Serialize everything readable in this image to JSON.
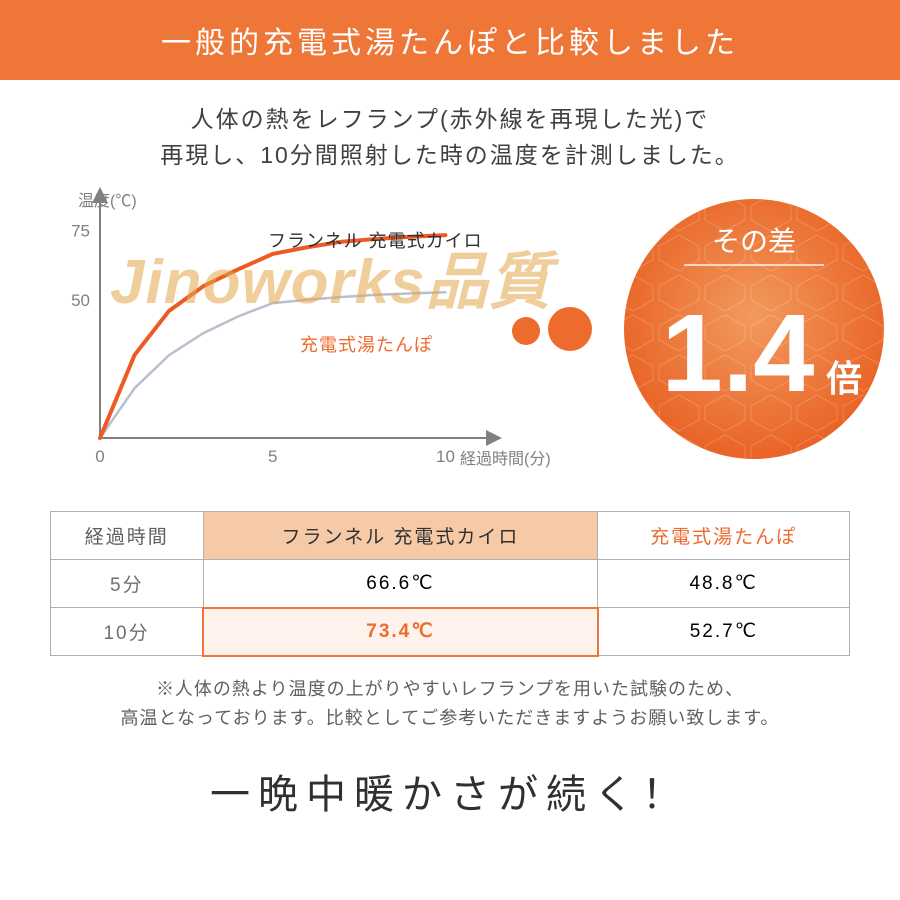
{
  "colors": {
    "header_bg": "#ee7738",
    "accent": "#ed6b2c",
    "series_a": "#ed5a24",
    "series_b": "#b7c0cc",
    "axis": "#808080",
    "grid_border": "#b0b0b0",
    "badge_gradient_inner": "#f29a5e",
    "badge_gradient_outer": "#e85e20",
    "th_highlight_bg": "#f6c9a7",
    "highlight_border": "#eb7640",
    "highlight_bg": "#fdf2ec",
    "watermark": "#e4a74a"
  },
  "header": {
    "title": "一般的充電式湯たんぽと比較しました"
  },
  "description": {
    "line1": "人体の熱をレフランプ(赤外線を再現した光)で",
    "line2": "再現し、10分間照射した時の温度を計測しました。"
  },
  "watermark": "Jinoworks品質",
  "chart": {
    "type": "line",
    "y_label": "温度(℃)",
    "x_label": "経過時間(分)",
    "xlim": [
      0,
      11
    ],
    "ylim": [
      0,
      85
    ],
    "x_ticks": [
      0,
      5,
      10
    ],
    "y_ticks": [
      50,
      75
    ],
    "axis_color": "#808080",
    "axis_stroke_width": 2,
    "line_width_a": 4,
    "line_width_b": 2.5,
    "series_a": {
      "label": "フランネル 充電式カイロ",
      "color": "#ed5a24",
      "points_x": [
        0,
        1,
        2,
        3,
        4,
        5,
        6,
        7,
        8,
        9,
        10
      ],
      "points_y": [
        0,
        30,
        46,
        55,
        61,
        66.6,
        69,
        71,
        72,
        72.8,
        73.4
      ]
    },
    "series_b": {
      "label": "充電式湯たんぽ",
      "color": "#b7c0cc",
      "points_x": [
        0,
        1,
        2,
        3,
        4,
        5,
        6,
        7,
        8,
        9,
        10
      ],
      "points_y": [
        0,
        18,
        30,
        38,
        44,
        48.8,
        50,
        51,
        51.8,
        52.3,
        52.7
      ]
    }
  },
  "badge": {
    "top_text": "その差",
    "number": "1.4",
    "unit": "倍",
    "top_fontsize": 28,
    "number_fontsize": 110,
    "unit_fontsize": 36,
    "text_color": "#ffffff",
    "diameter": 260,
    "connector_dot_a": {
      "d": 28,
      "color": "#ed6b2c"
    },
    "connector_dot_b": {
      "d": 44,
      "color": "#ed6b2c"
    }
  },
  "table": {
    "columns": [
      "経過時間",
      "フランネル 充電式カイロ",
      "充電式湯たんぽ"
    ],
    "col_header_colors": [
      "#606060",
      "#303030",
      "#ed6b2c"
    ],
    "col_header_bg": [
      "#ffffff",
      "#f6c9a7",
      "#ffffff"
    ],
    "rows": [
      {
        "time": "5分",
        "a": "66.6℃",
        "b": "48.8℃",
        "highlight": false
      },
      {
        "time": "10分",
        "a": "73.4℃",
        "b": "52.7℃",
        "highlight": true
      }
    ],
    "highlight_cell_color": "#ed6b2c"
  },
  "footnote": {
    "line1": "※人体の熱より温度の上がりやすいレフランプを用いた試験のため、",
    "line2": "高温となっております。比較としてご参考いただきますようお願い致します。"
  },
  "tagline": "一晩中暖かさが続く！"
}
